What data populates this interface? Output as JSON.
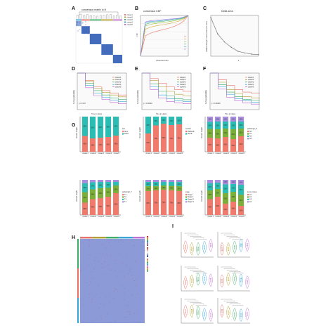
{
  "panels": {
    "A": {
      "label": "A",
      "title": "consensus matrix k=5"
    },
    "B": {
      "label": "B",
      "title": "consensus CDF",
      "xlabel": "consensus index",
      "ylabel": "CDF"
    },
    "C": {
      "label": "C",
      "title": "Delta area",
      "xlabel": "k",
      "ylabel": "Relative change in area under CDF curve"
    },
    "D": {
      "label": "D",
      "pvalue": "p = 0.017",
      "xlabel": "Time (in days)",
      "ylabel": "Survival probability"
    },
    "E": {
      "label": "E",
      "pvalue": "p = 0.00040",
      "xlabel": "Time (in days)",
      "ylabel": "Survival probability"
    },
    "F": {
      "label": "F",
      "pvalue": "p = 0.00046",
      "xlabel": "Time (in days)",
      "ylabel": "Survival probability"
    },
    "G": {
      "label": "G"
    },
    "H": {
      "label": "H"
    },
    "I": {
      "label": "I"
    }
  },
  "legends": {
    "clusters": [
      "cluster1",
      "cluster2",
      "cluster3",
      "cluster4",
      "cluster5"
    ],
    "g1": {
      "title": "stat",
      "items": [
        "Alive",
        "Dead"
      ]
    },
    "g2": {
      "title": "Gender",
      "items": [
        "FEMALE",
        "MALE"
      ]
    },
    "g3": {
      "title": "pathologic_N",
      "items": [
        "N0",
        "N1",
        "N2",
        "N3"
      ]
    },
    "g4": {
      "title": "pathologic_T",
      "items": [
        "T1",
        "T2",
        "T3",
        "T4"
      ]
    },
    "g5": {
      "title": "stage",
      "items": [
        "Stage I",
        "Stage II",
        "Stage III",
        "Stage IV"
      ]
    },
    "g6": {
      "title": "tumor_tissue",
      "items": [
        "G1",
        "G2",
        "G3",
        "G4"
      ]
    }
  },
  "colors": {
    "clusters": [
      "#e8736a",
      "#b4a032",
      "#3fae6a",
      "#3aa6d8",
      "#c06fd2"
    ],
    "consensus_blue": "#2f5db5",
    "bar_red": "#f07a6c",
    "bar_teal": "#2bbdb3",
    "bar_green": "#7cae3a",
    "bar_purple": "#a98ee0",
    "heat_base": "#8a98d6"
  },
  "chart_data": [
    {
      "type": "line",
      "panel": "B",
      "title": "consensus CDF",
      "xlabel": "consensus index",
      "ylabel": "CDF",
      "x": [
        0,
        0.1,
        0.2,
        0.3,
        0.4,
        0.5,
        0.6,
        0.7,
        0.8,
        0.9,
        1.0
      ],
      "series": [
        {
          "values": [
            0.0,
            0.5,
            0.56,
            0.6,
            0.63,
            0.66,
            0.69,
            0.73,
            0.78,
            0.86,
            1.0
          ]
        },
        {
          "values": [
            0.0,
            0.66,
            0.71,
            0.74,
            0.76,
            0.78,
            0.8,
            0.83,
            0.86,
            0.91,
            1.0
          ]
        },
        {
          "values": [
            0.0,
            0.74,
            0.78,
            0.8,
            0.82,
            0.83,
            0.85,
            0.87,
            0.89,
            0.93,
            1.0
          ]
        },
        {
          "values": [
            0.0,
            0.78,
            0.82,
            0.84,
            0.85,
            0.86,
            0.88,
            0.89,
            0.91,
            0.94,
            1.0
          ]
        },
        {
          "values": [
            0.0,
            0.82,
            0.85,
            0.86,
            0.87,
            0.88,
            0.89,
            0.91,
            0.92,
            0.95,
            1.0
          ]
        },
        {
          "values": [
            0.0,
            0.84,
            0.87,
            0.88,
            0.89,
            0.9,
            0.91,
            0.92,
            0.93,
            0.96,
            1.0
          ]
        }
      ],
      "xlim": [
        0,
        1
      ],
      "ylim": [
        0,
        1
      ]
    },
    {
      "type": "line",
      "panel": "C",
      "title": "Delta area",
      "xlabel": "k",
      "ylabel": "Relative change in area under CDF curve",
      "x": [
        2,
        3,
        4,
        5,
        6,
        7,
        8,
        9
      ],
      "values": [
        0.95,
        0.55,
        0.35,
        0.22,
        0.12,
        0.08,
        0.05,
        0.04
      ],
      "xlim": [
        2,
        9
      ],
      "ylim": [
        0,
        1
      ]
    },
    {
      "type": "line",
      "panel": "D",
      "xlabel": "Time (in days)",
      "ylabel": "Survival probability",
      "x": [
        0,
        500,
        1000,
        1500,
        2000,
        2500,
        3000
      ],
      "series": [
        {
          "name": "cluster1",
          "values": [
            1.0,
            0.8,
            0.62,
            0.52,
            0.45,
            0.4,
            0.38
          ]
        },
        {
          "name": "cluster2",
          "values": [
            1.0,
            0.78,
            0.58,
            0.47,
            0.4,
            0.35,
            0.32
          ]
        },
        {
          "name": "cluster3",
          "values": [
            1.0,
            0.72,
            0.52,
            0.4,
            0.32,
            0.28,
            0.25
          ]
        },
        {
          "name": "cluster4",
          "values": [
            1.0,
            0.66,
            0.45,
            0.33,
            0.26,
            0.22,
            0.2
          ]
        },
        {
          "name": "cluster5",
          "values": [
            1.0,
            0.6,
            0.38,
            0.28,
            0.2,
            0.16,
            0.15
          ]
        }
      ],
      "ylim": [
        0,
        1
      ]
    },
    {
      "type": "line",
      "panel": "E",
      "xlabel": "Time (in days)",
      "ylabel": "Survival probability",
      "x": [
        0,
        500,
        1000,
        1500,
        2000,
        2500,
        3000
      ],
      "series": [
        {
          "name": "cluster1",
          "values": [
            1.0,
            0.85,
            0.72,
            0.62,
            0.55,
            0.5,
            0.48
          ]
        },
        {
          "name": "cluster2",
          "values": [
            1.0,
            0.8,
            0.62,
            0.5,
            0.42,
            0.38,
            0.36
          ]
        },
        {
          "name": "cluster3",
          "values": [
            1.0,
            0.7,
            0.5,
            0.38,
            0.3,
            0.27,
            0.25
          ]
        },
        {
          "name": "cluster4",
          "values": [
            1.0,
            0.62,
            0.4,
            0.3,
            0.24,
            0.22,
            0.21
          ]
        },
        {
          "name": "cluster5",
          "values": [
            1.0,
            0.55,
            0.32,
            0.22,
            0.18,
            0.16,
            0.15
          ]
        }
      ],
      "ylim": [
        0,
        1
      ]
    },
    {
      "type": "line",
      "panel": "F",
      "xlabel": "Time (in days)",
      "ylabel": "Survival probability",
      "x": [
        0,
        500,
        1000,
        1500,
        2000,
        2500,
        3000
      ],
      "series": [
        {
          "name": "cluster1",
          "values": [
            1.0,
            0.82,
            0.66,
            0.55,
            0.48,
            0.45,
            0.43
          ]
        },
        {
          "name": "cluster2",
          "values": [
            1.0,
            0.75,
            0.55,
            0.44,
            0.36,
            0.32,
            0.3
          ]
        },
        {
          "name": "cluster3",
          "values": [
            1.0,
            0.68,
            0.48,
            0.36,
            0.28,
            0.25,
            0.23
          ]
        },
        {
          "name": "cluster4",
          "values": [
            1.0,
            0.62,
            0.42,
            0.3,
            0.24,
            0.2,
            0.18
          ]
        },
        {
          "name": "cluster5",
          "values": [
            1.0,
            0.56,
            0.34,
            0.24,
            0.18,
            0.15,
            0.13
          ]
        }
      ],
      "ylim": [
        0,
        1
      ]
    },
    {
      "type": "bar",
      "panel": "G1",
      "categories": [
        "cluster1",
        "cluster2",
        "cluster3",
        "cluster4",
        "cluster5"
      ],
      "ylabel": "Percent weight",
      "series": [
        {
          "name": "Alive",
          "values": [
            45,
            38,
            40,
            42,
            46
          ]
        },
        {
          "name": "Dead",
          "values": [
            55,
            62,
            60,
            58,
            54
          ]
        }
      ],
      "ylim": [
        0,
        100
      ]
    },
    {
      "type": "bar",
      "panel": "G2",
      "categories": [
        "cluster1",
        "cluster2",
        "cluster3",
        "cluster4",
        "cluster5"
      ],
      "ylabel": "Percent weight",
      "series": [
        {
          "name": "FEMALE",
          "values": [
            52,
            75,
            80,
            76,
            78
          ]
        },
        {
          "name": "MALE",
          "values": [
            48,
            25,
            20,
            24,
            22
          ]
        }
      ],
      "ylim": [
        0,
        100
      ]
    },
    {
      "type": "bar",
      "panel": "G3",
      "categories": [
        "cluster1",
        "cluster2",
        "cluster3",
        "cluster4",
        "cluster5"
      ],
      "ylabel": "Percent weight",
      "series": [
        {
          "name": "N0",
          "values": [
            40,
            38,
            42,
            36,
            44
          ]
        },
        {
          "name": "N1",
          "values": [
            25,
            26,
            24,
            28,
            22
          ]
        },
        {
          "name": "N2",
          "values": [
            20,
            22,
            20,
            22,
            20
          ]
        },
        {
          "name": "N3",
          "values": [
            15,
            14,
            14,
            14,
            14
          ]
        }
      ],
      "ylim": [
        0,
        100
      ]
    },
    {
      "type": "bar",
      "panel": "G4",
      "categories": [
        "cluster1",
        "cluster2",
        "cluster3",
        "cluster4",
        "cluster5"
      ],
      "ylabel": "Percent weight",
      "series": [
        {
          "name": "T1",
          "values": [
            35,
            45,
            48,
            52,
            62
          ]
        },
        {
          "name": "T2",
          "values": [
            30,
            28,
            28,
            26,
            22
          ]
        },
        {
          "name": "T3",
          "values": [
            25,
            20,
            18,
            16,
            10
          ]
        },
        {
          "name": "T4",
          "values": [
            10,
            7,
            6,
            6,
            6
          ]
        }
      ],
      "ylim": [
        0,
        100
      ]
    },
    {
      "type": "bar",
      "panel": "G5",
      "categories": [
        "cluster1",
        "cluster2",
        "cluster3",
        "cluster4",
        "cluster5"
      ],
      "ylabel": "Percent weight",
      "series": [
        {
          "name": "Stage I",
          "values": [
            68,
            70,
            72,
            70,
            68
          ]
        },
        {
          "name": "Stage II",
          "values": [
            14,
            12,
            12,
            13,
            14
          ]
        },
        {
          "name": "Stage III",
          "values": [
            12,
            12,
            10,
            11,
            12
          ]
        },
        {
          "name": "Stage IV",
          "values": [
            6,
            6,
            6,
            6,
            6
          ]
        }
      ],
      "ylim": [
        0,
        100
      ]
    },
    {
      "type": "bar",
      "panel": "G6",
      "categories": [
        "cluster1",
        "cluster2",
        "cluster3",
        "cluster4",
        "cluster5"
      ],
      "ylabel": "Percent weight",
      "series": [
        {
          "name": "G1",
          "values": [
            45,
            52,
            32,
            38,
            26
          ]
        },
        {
          "name": "G2",
          "values": [
            25,
            22,
            30,
            28,
            32
          ]
        },
        {
          "name": "G3",
          "values": [
            20,
            18,
            25,
            22,
            28
          ]
        },
        {
          "name": "G4",
          "values": [
            10,
            8,
            13,
            12,
            14
          ]
        }
      ],
      "ylim": [
        0,
        100
      ]
    }
  ]
}
